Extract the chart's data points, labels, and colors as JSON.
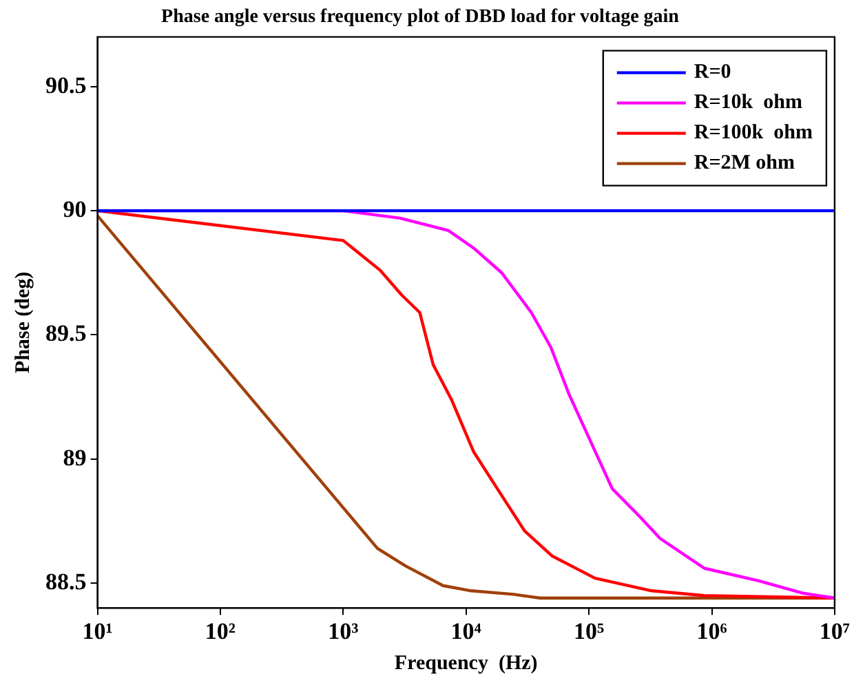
{
  "chart_data": {
    "type": "line",
    "title": "Phase angle versus frequency plot of DBD load for voltage gain",
    "xlabel": "Frequency  (Hz)",
    "ylabel": "Phase (deg)",
    "log": "x",
    "grid": false,
    "legend": "top right",
    "marker": "none",
    "line_style": "solid",
    "xlim": [
      10,
      10000000
    ],
    "xticks": [
      {
        "value": 10,
        "label": "10¹"
      },
      {
        "value": 100,
        "label": "10²"
      },
      {
        "value": 1000,
        "label": "10³"
      },
      {
        "value": 10000,
        "label": "10⁴"
      },
      {
        "value": 100000,
        "label": "10⁵"
      },
      {
        "value": 1000000,
        "label": "10⁶"
      },
      {
        "value": 10000000,
        "label": "10⁷"
      }
    ],
    "ylim": [
      88.4,
      90.7
    ],
    "yticks": [
      88.5,
      89,
      89.5,
      90,
      90.5
    ],
    "series": [
      {
        "name": "R=0",
        "color": "#0000ff",
        "x": [
          10,
          10000000
        ],
        "values": [
          90,
          90
        ]
      },
      {
        "name": "R=10k  ohm",
        "color": "#ff00ff",
        "x": [
          10,
          1000,
          2900,
          7200,
          11500,
          19500,
          34000,
          49000,
          69000,
          115000,
          155000,
          257000,
          380000,
          870000,
          2400000,
          5500000,
          10000000
        ],
        "values": [
          90,
          90,
          89.97,
          89.92,
          89.85,
          89.75,
          89.59,
          89.45,
          89.26,
          89.02,
          88.88,
          88.77,
          88.68,
          88.56,
          88.51,
          88.46,
          88.44
        ]
      },
      {
        "name": "R=100k  ohm",
        "color": "#ff0000",
        "x": [
          10,
          1000,
          2000,
          3000,
          4200,
          5400,
          7600,
          11500,
          18000,
          30000,
          50000,
          112000,
          316000,
          870000,
          10000000
        ],
        "values": [
          90,
          89.88,
          89.76,
          89.66,
          89.59,
          89.38,
          89.24,
          89.03,
          88.88,
          88.71,
          88.61,
          88.52,
          88.47,
          88.45,
          88.44
        ]
      },
      {
        "name": "R=2M ohm",
        "color": "#a0400a",
        "x": [
          10,
          1900,
          3200,
          6500,
          10700,
          24500,
          40000,
          10000000
        ],
        "values": [
          89.98,
          88.64,
          88.57,
          88.49,
          88.47,
          88.455,
          88.44,
          88.44
        ]
      }
    ]
  }
}
